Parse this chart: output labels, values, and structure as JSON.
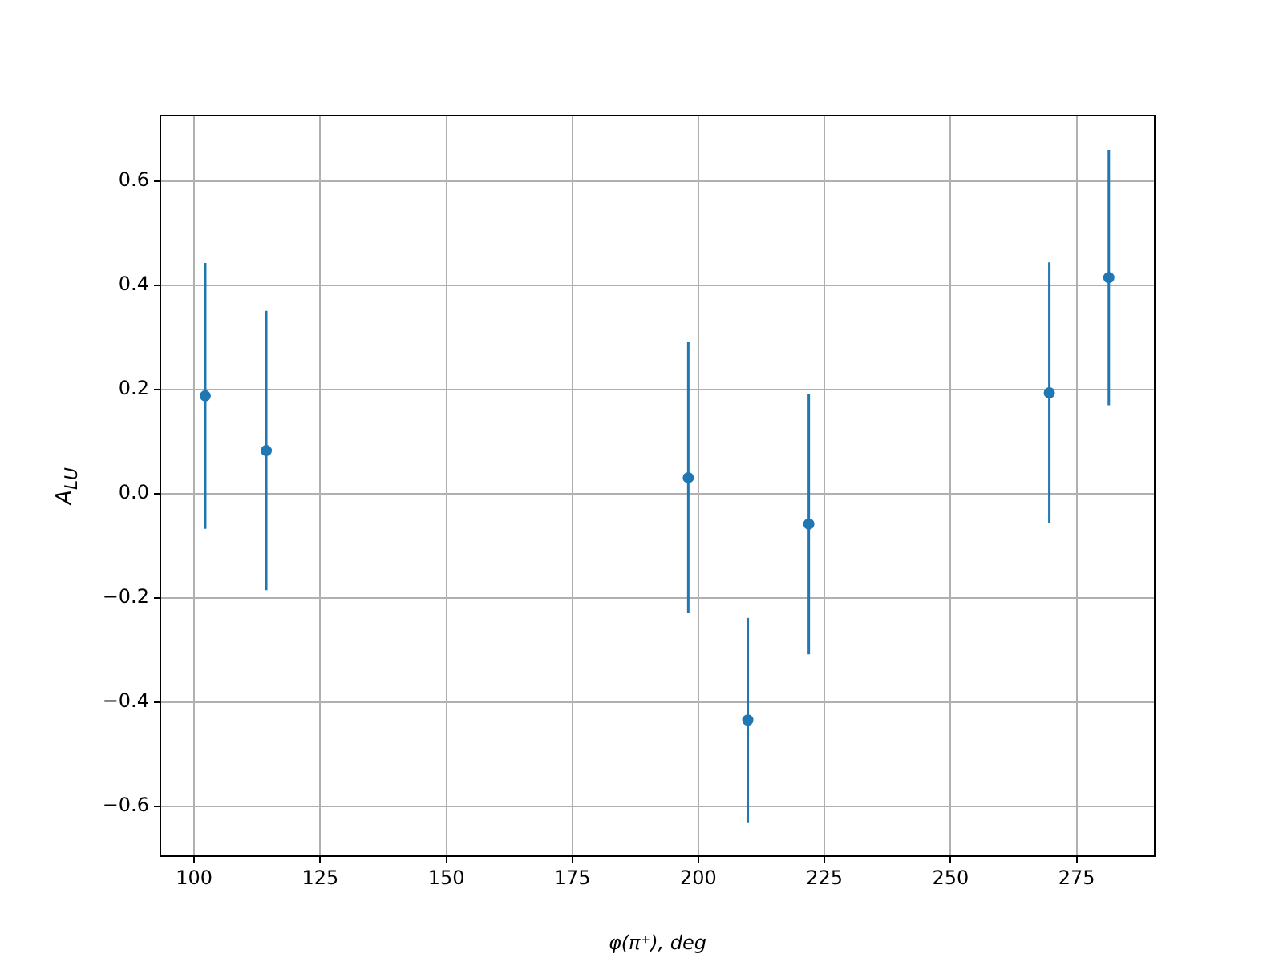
{
  "chart_data": {
    "type": "scatter",
    "xlabel": "φ(π⁺), deg",
    "ylabel": "A$_{LU}$",
    "x": [
      102.2,
      114.3,
      198,
      209.8,
      221.9,
      269.6,
      281.4
    ],
    "series": [
      {
        "color": "#1f77b4",
        "values": [
          0.188,
          0.083,
          0.031,
          -0.434,
          -0.058,
          0.194,
          0.415
        ],
        "errors": [
          0.255,
          0.268,
          0.26,
          0.196,
          0.25,
          0.25,
          0.245
        ]
      }
    ],
    "xlim": [
      93.3,
      290.5
    ],
    "ylim": [
      -0.695,
      0.726
    ],
    "xticks": [
      100,
      125,
      150,
      175,
      200,
      225,
      250,
      275
    ],
    "yticks": [
      {
        "value": -0.6,
        "label": "−0.6"
      },
      {
        "value": -0.4,
        "label": "−0.4"
      },
      {
        "value": -0.2,
        "label": "−0.2"
      },
      {
        "value": 0,
        "label": "0.0"
      },
      {
        "value": 0.2,
        "label": "0.2"
      },
      {
        "value": 0.4,
        "label": "0.4"
      },
      {
        "value": 0.6,
        "label": "0.6"
      }
    ],
    "grid": true,
    "legend": false,
    "marker": "circle"
  }
}
